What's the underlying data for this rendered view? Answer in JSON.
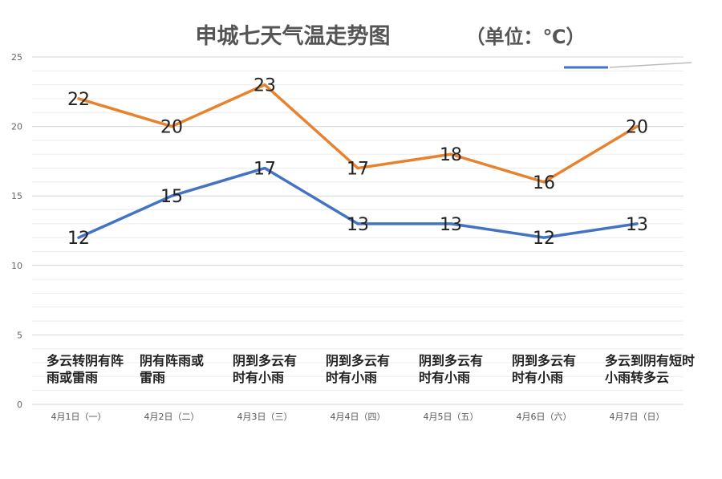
{
  "chart_data": {
    "type": "line",
    "title": "申城七天气温走势图",
    "unit_label": "（单位：℃）",
    "categories": [
      "4月1日（一）",
      "4月2日（二）",
      "4月3日（三）",
      "4月4日（四）",
      "4月5日（五）",
      "4月6日（六）",
      "4月7日（日）"
    ],
    "weather": [
      [
        "多云转阴有阵",
        "雨或雷雨"
      ],
      [
        "阴有阵雨或",
        "雷雨"
      ],
      [
        "阴到多云有",
        "时有小雨"
      ],
      [
        "阴到多云有",
        "时有小雨"
      ],
      [
        "阴到多云有",
        "时有小雨"
      ],
      [
        "阴到多云有",
        "时有小雨"
      ],
      [
        "多云到阴有短时",
        "小雨转多云"
      ]
    ],
    "series": [
      {
        "values": [
          22,
          20,
          23,
          17,
          18,
          16,
          20
        ],
        "color": "#E8822E"
      },
      {
        "values": [
          12,
          15,
          17,
          13,
          13,
          12,
          13
        ],
        "color": "#4472C4"
      }
    ],
    "y_ticks": [
      0,
      5,
      10,
      15,
      20,
      25
    ],
    "ylim": [
      0,
      25
    ],
    "grid": true,
    "legend": {
      "position": "top-right",
      "color": "#4472C4"
    },
    "colors": {
      "grid_major": "#d6d6d6",
      "grid_minor": "#ececec"
    }
  }
}
